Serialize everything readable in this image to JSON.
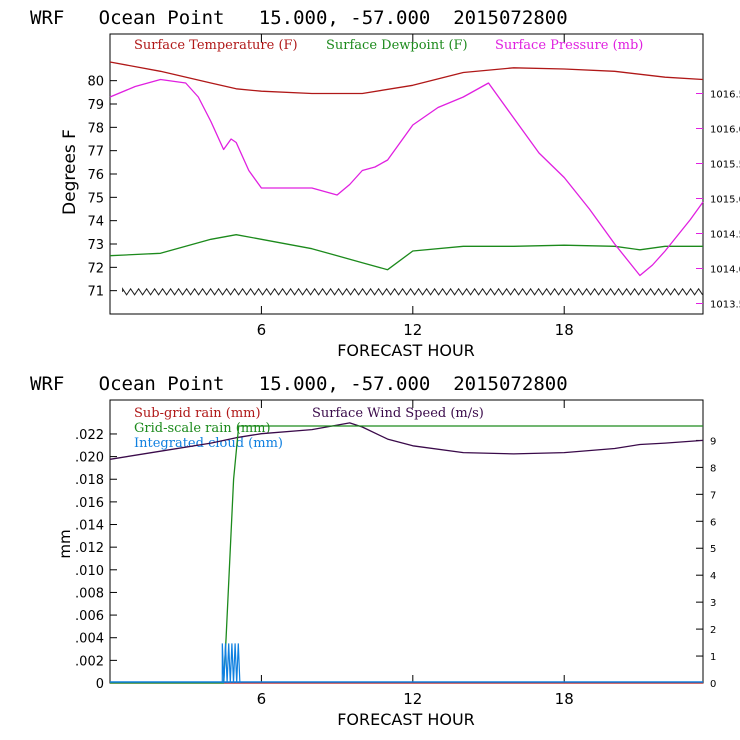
{
  "chart_data": [
    {
      "type": "line",
      "title": "WRF   Ocean Point   15.000, -57.000  2015072800",
      "xlabel": "FORECAST HOUR",
      "ylabel": "Degrees F",
      "xlim": [
        0,
        23.5
      ],
      "x_ticks": [
        6,
        12,
        18
      ],
      "ylim": [
        70.0,
        82.0
      ],
      "y_ticks": [
        71,
        72,
        73,
        74,
        75,
        76,
        77,
        78,
        79,
        80
      ],
      "y2lim": [
        1013.35,
        1017.35
      ],
      "y2_ticks": [
        "1013.5",
        "1014.0",
        "1014.5",
        "1015.0",
        "1015.5",
        "1016.0",
        "1016.5"
      ],
      "grid": false,
      "legend": "top",
      "series": [
        {
          "name": "Surface Temperature (F)",
          "color": "#b01818",
          "axis": "left",
          "x": [
            0,
            2,
            4,
            5,
            6,
            8,
            10,
            12,
            14,
            16,
            18,
            20,
            22,
            23.5
          ],
          "y": [
            80.8,
            80.4,
            79.9,
            79.65,
            79.55,
            79.45,
            79.45,
            79.8,
            80.35,
            80.55,
            80.5,
            80.4,
            80.15,
            80.05
          ]
        },
        {
          "name": "Surface Dewpoint (F)",
          "color": "#1c8a1c",
          "axis": "left",
          "x": [
            0,
            2,
            4,
            5,
            6,
            8,
            10,
            11,
            12,
            14,
            16,
            18,
            20,
            21,
            22,
            23.5
          ],
          "y": [
            72.5,
            72.6,
            73.2,
            73.4,
            73.2,
            72.8,
            72.2,
            71.9,
            72.7,
            72.9,
            72.9,
            72.95,
            72.9,
            72.75,
            72.9,
            72.9
          ]
        },
        {
          "name": "Surface Pressure (mb)",
          "color": "#e020e0",
          "axis": "right",
          "x": [
            0,
            1,
            2,
            3,
            3.5,
            4,
            4.5,
            4.8,
            5,
            5.5,
            6,
            7,
            8,
            9,
            9.5,
            10,
            10.5,
            11,
            12,
            13,
            14,
            15,
            16,
            17,
            18,
            19,
            20,
            21,
            21.5,
            22,
            23,
            23.5
          ],
          "y": [
            1016.45,
            1016.6,
            1016.7,
            1016.65,
            1016.45,
            1016.1,
            1015.7,
            1015.85,
            1015.8,
            1015.4,
            1015.15,
            1015.15,
            1015.15,
            1015.05,
            1015.2,
            1015.4,
            1015.45,
            1015.55,
            1016.05,
            1016.3,
            1016.45,
            1016.65,
            1016.15,
            1015.65,
            1015.3,
            1014.85,
            1014.35,
            1013.9,
            1014.05,
            1014.25,
            1014.7,
            1014.95
          ]
        },
        {
          "name": "",
          "color": "#222222",
          "axis": "left",
          "pattern": "zigzag",
          "x": [
            0.5,
            23.5
          ],
          "y": [
            70.95,
            70.95
          ]
        }
      ]
    },
    {
      "type": "line",
      "title": "WRF   Ocean Point   15.000, -57.000  2015072800",
      "xlabel": "FORECAST HOUR",
      "ylabel": "mm",
      "xlim": [
        0,
        23.5
      ],
      "x_ticks": [
        6,
        12,
        18
      ],
      "ylim": [
        0,
        0.025
      ],
      "y_ticks": [
        "0",
        ".002",
        ".004",
        ".006",
        ".008",
        ".010",
        ".012",
        ".014",
        ".016",
        ".018",
        ".020",
        ".022"
      ],
      "y2lim": [
        0,
        10.5
      ],
      "y2_ticks": [
        "0",
        "1",
        "2",
        "3",
        "4",
        "5",
        "6",
        "7",
        "8",
        "9"
      ],
      "grid": false,
      "legend": "top-left",
      "series": [
        {
          "name": "Sub-grid rain (mm)",
          "color": "#b01818",
          "axis": "left",
          "x": [
            0,
            23.5
          ],
          "y": [
            0,
            0
          ]
        },
        {
          "name": "Surface Wind Speed (m/s)",
          "color": "#3a0a4a",
          "axis": "right",
          "x": [
            0,
            2,
            4,
            5,
            6,
            8,
            9.5,
            10,
            11,
            12,
            14,
            16,
            18,
            20,
            21,
            22,
            23.5
          ],
          "y": [
            8.3,
            8.6,
            8.9,
            9.1,
            9.25,
            9.4,
            9.65,
            9.5,
            9.05,
            8.8,
            8.55,
            8.5,
            8.55,
            8.7,
            8.85,
            8.9,
            9.0
          ]
        },
        {
          "name": "Grid-scale rain (mm)",
          "color": "#1c8a1c",
          "axis": "left",
          "x": [
            0,
            4.5,
            4.6,
            4.9,
            5.1,
            23.5
          ],
          "y": [
            0,
            0,
            0.004,
            0.018,
            0.0227,
            0.0227
          ]
        },
        {
          "name": "Integrated cloud (mm)",
          "color": "#1080e0",
          "axis": "left",
          "pattern": "spikes",
          "x": [
            4.45,
            5.2
          ],
          "y": [
            0.0035,
            0.0035
          ]
        }
      ]
    }
  ]
}
